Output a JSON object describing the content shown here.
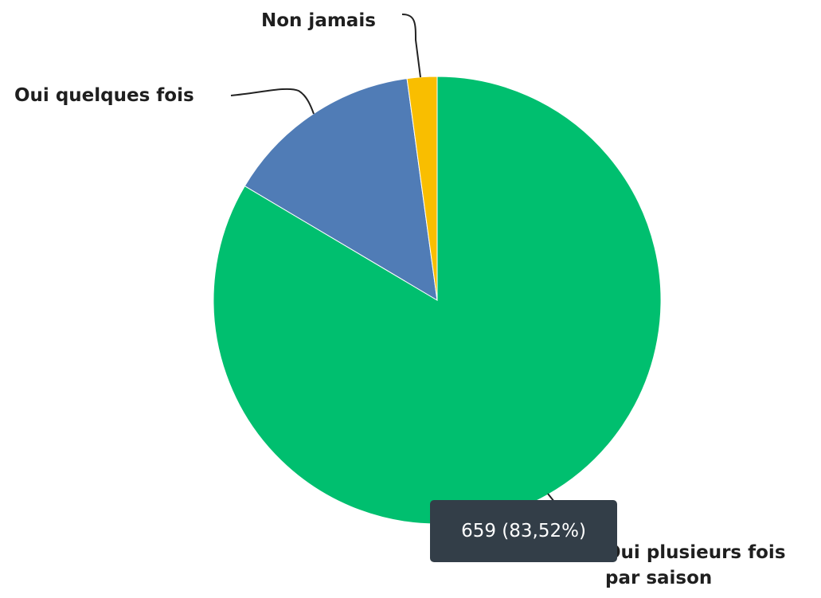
{
  "chart_data": {
    "type": "pie",
    "categories": [
      "Oui plusieurs fois par saison",
      "Oui quelques fois",
      "Non jamais"
    ],
    "values": [
      659,
      113,
      17
    ],
    "colors": [
      "#00bf6f",
      "#507cb6",
      "#f9be00"
    ],
    "tooltip": "659 (83,52%)"
  }
}
